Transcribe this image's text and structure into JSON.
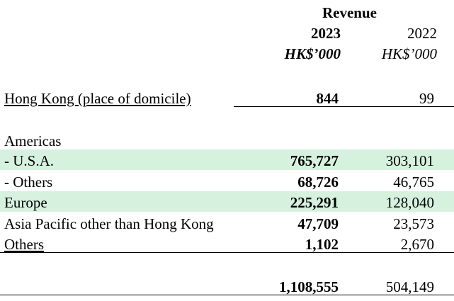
{
  "header": {
    "revenue_label": "Revenue",
    "year_current": "2023",
    "year_prior": "2022",
    "unit_current": "HK$’000",
    "unit_prior": "HK$’000"
  },
  "rows": [
    {
      "label": "Hong Kong (place of domicile)",
      "v2023": "844",
      "v2022": "99"
    },
    {
      "label": "Americas",
      "v2023": "",
      "v2022": ""
    },
    {
      "label": " - U.S.A.",
      "v2023": "765,727",
      "v2022": "303,101"
    },
    {
      "label": " - Others",
      "v2023": "68,726",
      "v2022": "46,765"
    },
    {
      "label": "Europe",
      "v2023": "225,291",
      "v2022": "128,040"
    },
    {
      "label": "Asia Pacific other than Hong Kong",
      "v2023": "47,709",
      "v2022": "23,573"
    },
    {
      "label": "Others",
      "v2023": "1,102",
      "v2022": "2,670"
    }
  ],
  "total": {
    "v2023": "1,108,555",
    "v2022": "504,149"
  },
  "colors": {
    "highlight": "#d6f2df"
  }
}
